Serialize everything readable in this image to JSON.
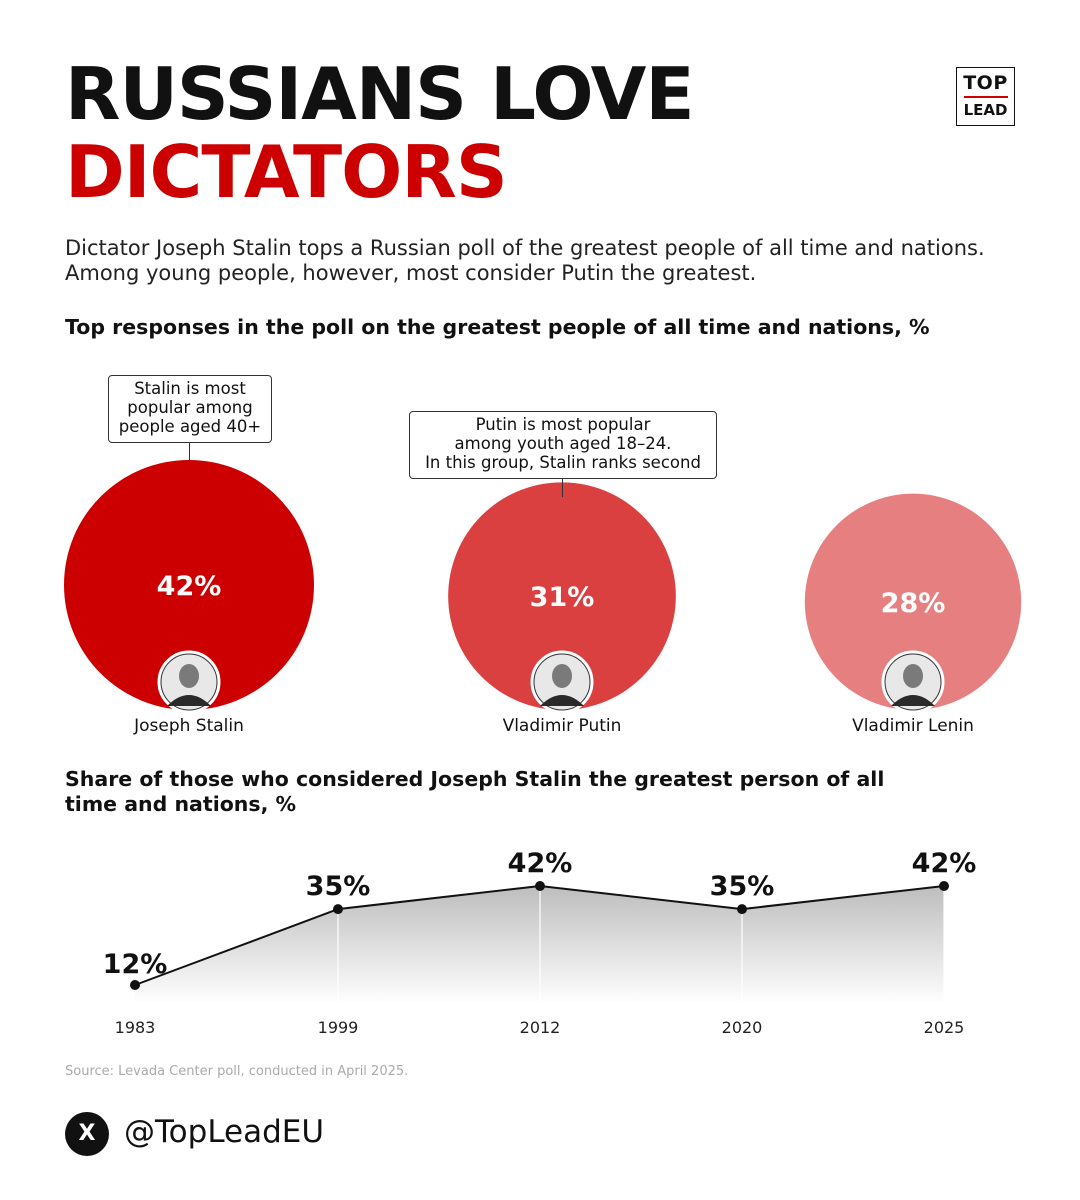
{
  "header": {
    "title_line1": "RUSSIANS LOVE",
    "title_line2": "DICTATORS",
    "subtitle": "Dictator Joseph Stalin tops a Russian poll of the greatest people of all time and nations. Among young people, however, most consider Putin the greatest."
  },
  "logo": {
    "top": "TOP",
    "bottom": "LEAD"
  },
  "colors": {
    "red": "#cc0000",
    "mid_red": "#db4040",
    "light_red": "#e68080"
  },
  "chart_data": [
    {
      "type": "bubble",
      "title": "Top responses in the poll on the greatest people of all time and nations, %",
      "categories": [
        "Joseph Stalin",
        "Vladimir Putin",
        "Vladimir Lenin"
      ],
      "values": [
        42,
        31,
        28
      ],
      "value_labels": [
        "42%",
        "31%",
        "28%"
      ],
      "annotations": [
        {
          "target": "Joseph Stalin",
          "text": [
            "Stalin is most",
            "popular among",
            "people aged 40+"
          ]
        },
        {
          "target": "Vladimir Putin",
          "text": [
            "Putin is most popular",
            "among youth aged 18–24.",
            "In this group, Stalin ranks second"
          ]
        }
      ]
    },
    {
      "type": "area",
      "title": "Share of those who considered Joseph Stalin the greatest person of all time and nations, %",
      "x": [
        "1983",
        "1999",
        "2012",
        "2020",
        "2025"
      ],
      "values": [
        12,
        35,
        42,
        35,
        42
      ],
      "value_labels": [
        "12%",
        "35%",
        "42%",
        "35%",
        "42%"
      ]
    }
  ],
  "footer": {
    "source": "Source: Levada Center poll, conducted in April 2025.",
    "x_icon": "X",
    "handle": "@TopLeadEU"
  }
}
